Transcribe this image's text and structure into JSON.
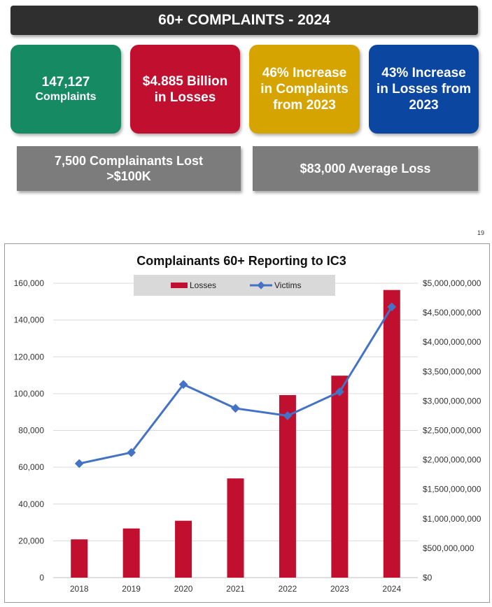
{
  "banner": {
    "title": "60+ COMPLAINTS - 2024"
  },
  "cards": [
    {
      "line1": "147,127",
      "line2": "Complaints",
      "color": "#158a63"
    },
    {
      "line1": "$4.885 Billion",
      "line2": "in Losses",
      "color": "#c1102f"
    },
    {
      "line1": "46% Increase",
      "line2": "in Complaints",
      "line3": "from 2023",
      "color": "#d5a400"
    },
    {
      "line1": "43% Increase",
      "line2": "in Losses from",
      "line3": "2023",
      "color": "#0b46a0"
    }
  ],
  "stats": [
    {
      "line1": "7,500 Complainants Lost",
      "line2": ">$100K"
    },
    {
      "line1": "$83,000 Average Loss"
    }
  ],
  "page_number": "19",
  "chart_data": {
    "type": "bar",
    "title": "Complainants 60+ Reporting to IC3",
    "categories": [
      "2018",
      "2019",
      "2020",
      "2021",
      "2022",
      "2023",
      "2024"
    ],
    "series": [
      {
        "name": "Losses",
        "type": "bar",
        "axis": "right",
        "color": "#c1102f",
        "values": [
          650000000,
          835000000,
          966000000,
          1685000000,
          3100000000,
          3430000000,
          4885000000
        ]
      },
      {
        "name": "Victims",
        "type": "line",
        "axis": "left",
        "color": "#4472c4",
        "values": [
          62000,
          68000,
          105000,
          92000,
          88000,
          101000,
          147127
        ]
      }
    ],
    "y_left": {
      "min": 0,
      "max": 160000,
      "step": 20000,
      "tick_labels": [
        "0",
        "20,000",
        "40,000",
        "60,000",
        "80,000",
        "100,000",
        "120,000",
        "140,000",
        "160,000"
      ]
    },
    "y_right": {
      "min": 0,
      "max": 5000000000,
      "step": 500000000,
      "tick_labels": [
        "$0",
        "$500,000,000",
        "$1,000,000,000",
        "$1,500,000,000",
        "$2,000,000,000",
        "$2,500,000,000",
        "$3,000,000,000",
        "$3,500,000,000",
        "$4,000,000,000",
        "$4,500,000,000",
        "$5,000,000,000"
      ]
    },
    "legend": {
      "position": "top",
      "entries": [
        "Losses",
        "Victims"
      ]
    },
    "grid": true
  }
}
